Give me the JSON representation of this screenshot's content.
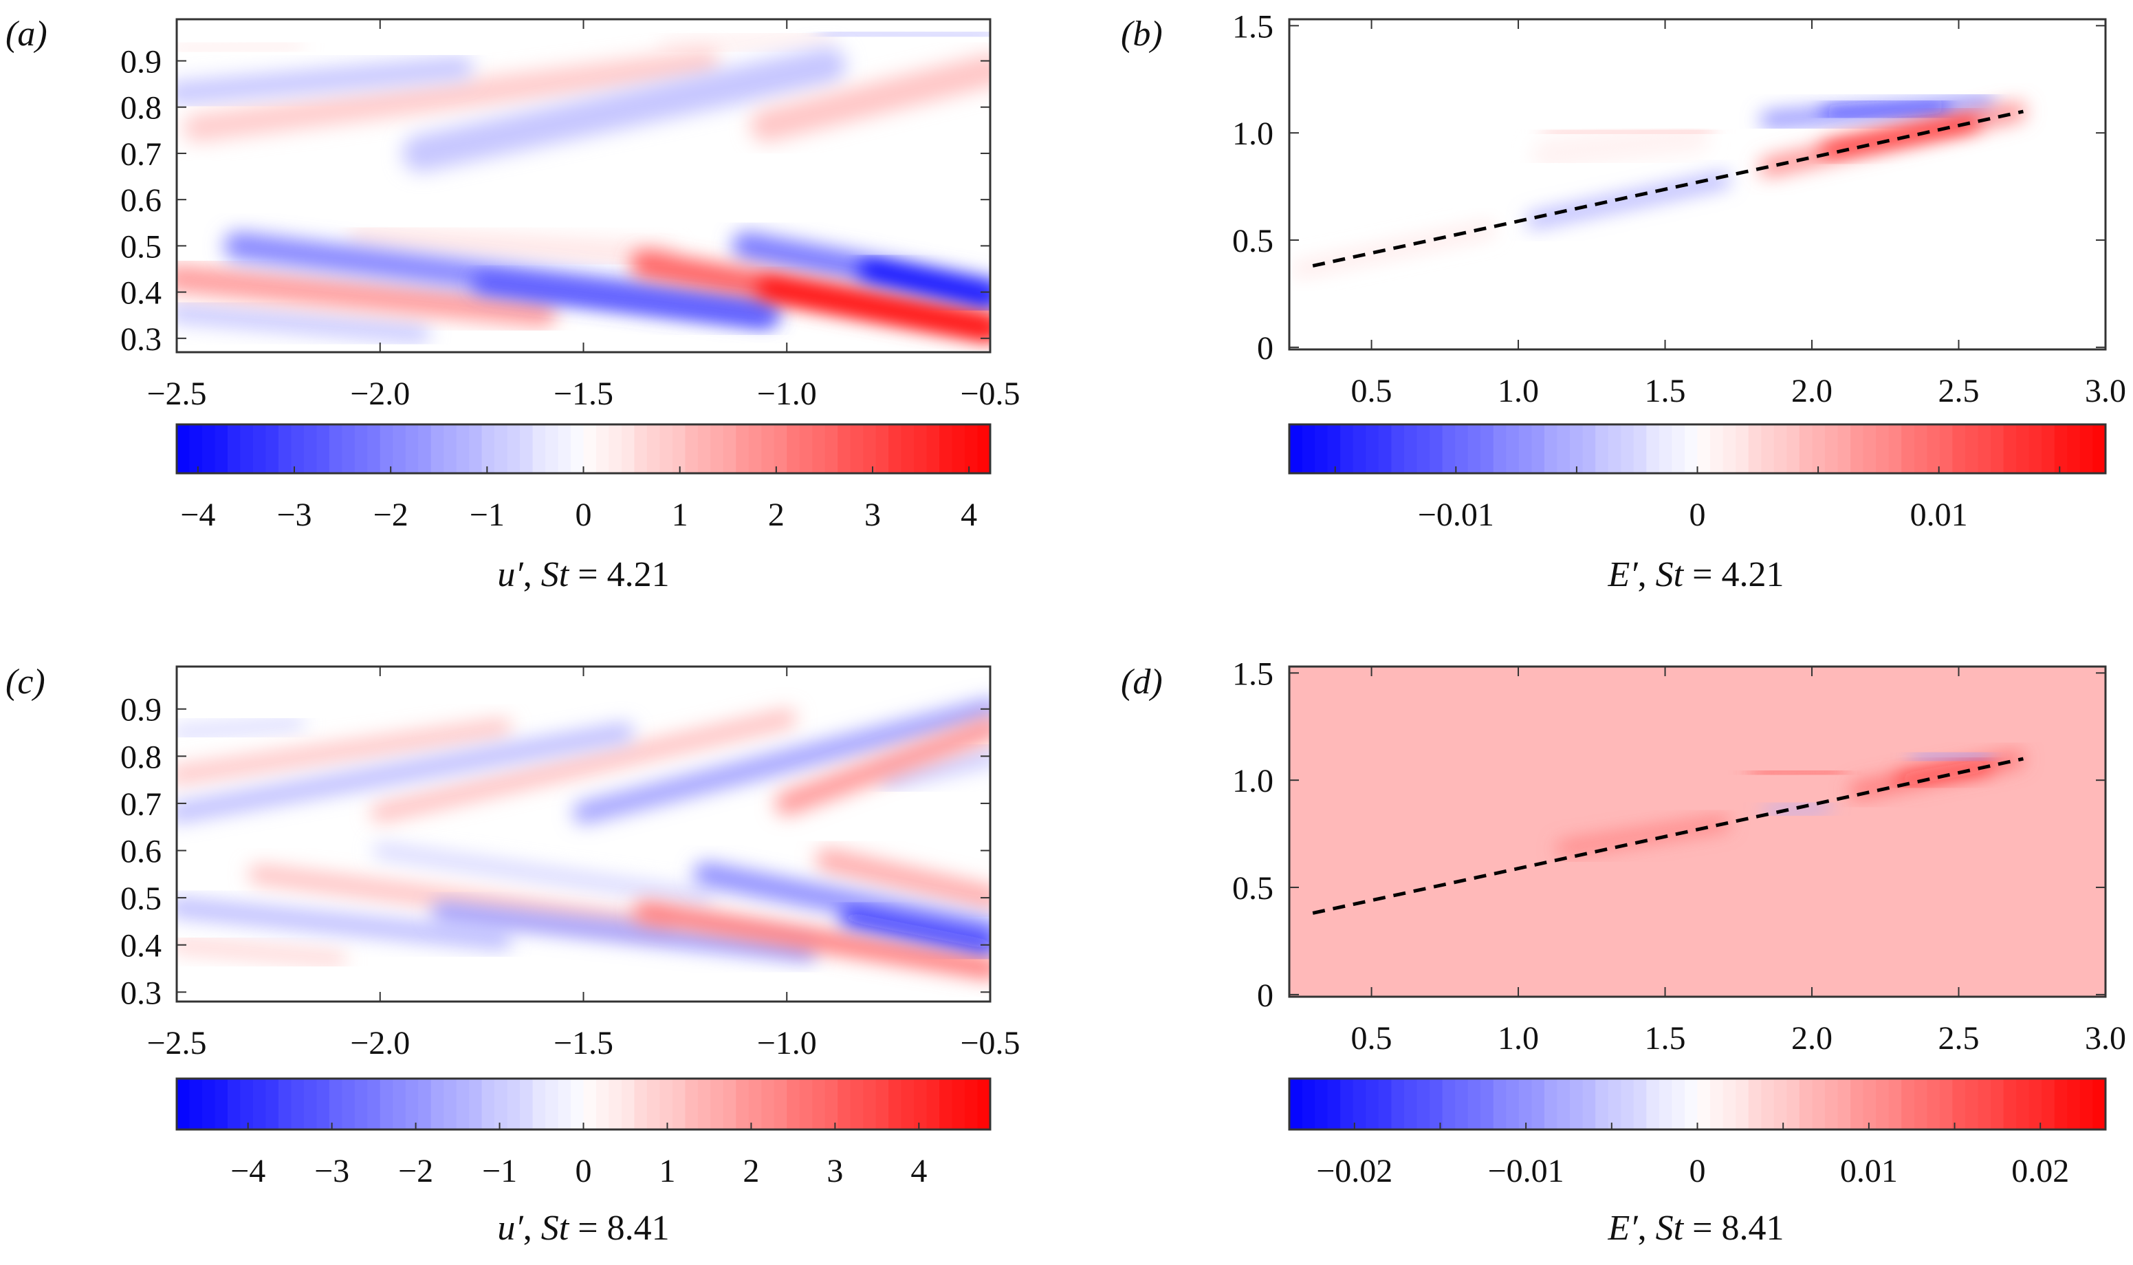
{
  "chart_data": [
    {
      "id": "a",
      "type": "heatmap",
      "panel_label": "(a)",
      "xlim": [
        -2.5,
        -0.5
      ],
      "ylim": [
        0.27,
        0.99
      ],
      "xticks": [
        -2.5,
        -2.0,
        -1.5,
        -1.0,
        -0.5
      ],
      "xtick_labels": [
        "−2.5",
        "−2.0",
        "−1.5",
        "−1.0",
        "−0.5"
      ],
      "yticks": [
        0.3,
        0.4,
        0.5,
        0.6,
        0.7,
        0.8,
        0.9
      ],
      "ytick_labels": [
        "0.3",
        "0.4",
        "0.5",
        "0.6",
        "0.7",
        "0.8",
        "0.9"
      ],
      "colorbar": {
        "range": [
          -4.22,
          4.22
        ],
        "ticks": [
          -4,
          -3,
          -2,
          -1,
          0,
          1,
          2,
          3,
          4
        ],
        "tick_labels": [
          "−4",
          "−3",
          "−2",
          "−1",
          "0",
          "1",
          "2",
          "3",
          "4"
        ],
        "colormap": [
          "#0000ff",
          "#ffffff",
          "#ff0000"
        ]
      },
      "label": {
        "var": "u′",
        "param": "St",
        "value": "4.21"
      },
      "background_value": 0,
      "features": [
        {
          "from": [
            -2.5,
            0.355
          ],
          "to": [
            -1.9,
            0.31
          ],
          "width": 0.04,
          "value": -0.9
        },
        {
          "from": [
            -2.05,
            0.52
          ],
          "to": [
            -1.3,
            0.48
          ],
          "width": 0.05,
          "value": 0.4
        },
        {
          "from": [
            -2.5,
            0.43
          ],
          "to": [
            -1.6,
            0.355
          ],
          "width": 0.06,
          "value": 1.6
        },
        {
          "from": [
            -2.35,
            0.5
          ],
          "to": [
            -1.05,
            0.36
          ],
          "width": 0.06,
          "value": -2.0
        },
        {
          "from": [
            -1.75,
            0.42
          ],
          "to": [
            -1.05,
            0.345
          ],
          "width": 0.04,
          "value": -3.0
        },
        {
          "from": [
            -1.35,
            0.46
          ],
          "to": [
            -0.5,
            0.325
          ],
          "width": 0.06,
          "value": 2.6
        },
        {
          "from": [
            -1.05,
            0.41
          ],
          "to": [
            -0.5,
            0.32
          ],
          "width": 0.04,
          "value": 4.1
        },
        {
          "from": [
            -1.1,
            0.5
          ],
          "to": [
            -0.5,
            0.4
          ],
          "width": 0.06,
          "value": -2.2
        },
        {
          "from": [
            -0.8,
            0.45
          ],
          "to": [
            -0.5,
            0.39
          ],
          "width": 0.04,
          "value": -4.2
        },
        {
          "from": [
            -2.5,
            0.925
          ],
          "to": [
            -2.2,
            0.935
          ],
          "width": 0.02,
          "value": 0.4
        },
        {
          "from": [
            -2.5,
            0.83
          ],
          "to": [
            -1.8,
            0.885
          ],
          "width": 0.05,
          "value": -1.0
        },
        {
          "from": [
            -2.45,
            0.755
          ],
          "to": [
            -1.2,
            0.895
          ],
          "width": 0.06,
          "value": 0.8
        },
        {
          "from": [
            -1.9,
            0.7
          ],
          "to": [
            -0.9,
            0.89
          ],
          "width": 0.08,
          "value": -0.9
        },
        {
          "from": [
            -1.3,
            0.93
          ],
          "to": [
            -0.9,
            0.95
          ],
          "width": 0.03,
          "value": 0.3
        },
        {
          "from": [
            -1.05,
            0.76
          ],
          "to": [
            -0.5,
            0.88
          ],
          "width": 0.07,
          "value": 1.0
        },
        {
          "from": [
            -0.9,
            0.96
          ],
          "to": [
            -0.5,
            0.955
          ],
          "width": 0.04,
          "value": -0.7
        }
      ]
    },
    {
      "id": "b",
      "type": "heatmap",
      "panel_label": "(b)",
      "xlim": [
        0.22,
        3.0
      ],
      "ylim": [
        -0.01,
        1.53
      ],
      "xticks": [
        0.5,
        1.0,
        1.5,
        2.0,
        2.5,
        3.0
      ],
      "xtick_labels": [
        "0.5",
        "1.0",
        "1.5",
        "2.0",
        "2.5",
        "3.0"
      ],
      "yticks": [
        0,
        0.5,
        1.0,
        1.5
      ],
      "ytick_labels": [
        "0",
        "0.5",
        "1.0",
        "1.5"
      ],
      "colorbar": {
        "range": [
          -0.0169,
          0.0169
        ],
        "ticks": [
          -0.01,
          0,
          0.01
        ],
        "tick_labels": [
          "−0.01",
          "0",
          "0.01"
        ],
        "minor_ticks": [
          -0.015,
          -0.005,
          0.005,
          0.015
        ],
        "colormap": [
          "#0000ff",
          "#ffffff",
          "#ff0000"
        ]
      },
      "label": {
        "var": "E′",
        "param": "St",
        "value": "4.21"
      },
      "background_value": 0,
      "dashed_line": {
        "from": [
          0.3,
          0.38
        ],
        "to": [
          2.72,
          1.1
        ]
      },
      "features": [
        {
          "from": [
            2.0,
            0.5
          ],
          "to": [
            3.0,
            0.5
          ],
          "width": 1.2,
          "value": -0.0008
        },
        {
          "from": [
            2.9,
            1.13
          ],
          "to": [
            2.92,
            1.13
          ],
          "width": 0.25,
          "value": -0.002
        },
        {
          "from": [
            0.25,
            0.36
          ],
          "to": [
            0.9,
            0.55
          ],
          "width": 0.06,
          "value": 0.0018
        },
        {
          "from": [
            1.1,
            0.9
          ],
          "to": [
            1.6,
            0.98
          ],
          "width": 0.14,
          "value": 0.0008
        },
        {
          "from": [
            1.1,
            1.0
          ],
          "to": [
            1.65,
            1.01
          ],
          "width": 0.05,
          "value": 0.0035
        },
        {
          "from": [
            0.6,
            0.93
          ],
          "to": [
            0.75,
            0.93
          ],
          "width": 0.02,
          "value": -0.0012
        },
        {
          "from": [
            1.05,
            0.59
          ],
          "to": [
            1.7,
            0.78
          ],
          "width": 0.06,
          "value": -0.006
        },
        {
          "from": [
            1.85,
            1.06
          ],
          "to": [
            2.6,
            1.14
          ],
          "width": 0.07,
          "value": -0.008
        },
        {
          "from": [
            2.05,
            1.09
          ],
          "to": [
            2.45,
            1.13
          ],
          "width": 0.04,
          "value": -0.015
        },
        {
          "from": [
            1.85,
            0.84
          ],
          "to": [
            2.7,
            1.1
          ],
          "width": 0.08,
          "value": 0.008
        },
        {
          "from": [
            2.05,
            0.92
          ],
          "to": [
            2.55,
            1.05
          ],
          "width": 0.05,
          "value": 0.0165
        }
      ]
    },
    {
      "id": "c",
      "type": "heatmap",
      "panel_label": "(c)",
      "xlim": [
        -2.5,
        -0.5
      ],
      "ylim": [
        0.28,
        0.99
      ],
      "xticks": [
        -2.5,
        -2.0,
        -1.5,
        -1.0,
        -0.5
      ],
      "xtick_labels": [
        "−2.5",
        "−2.0",
        "−1.5",
        "−1.0",
        "−0.5"
      ],
      "yticks": [
        0.3,
        0.4,
        0.5,
        0.6,
        0.7,
        0.8,
        0.9
      ],
      "ytick_labels": [
        "0.3",
        "0.4",
        "0.5",
        "0.6",
        "0.7",
        "0.8",
        "0.9"
      ],
      "colorbar": {
        "range": [
          -4.85,
          4.85
        ],
        "ticks": [
          -4,
          -3,
          -2,
          -1,
          0,
          1,
          2,
          3,
          4
        ],
        "tick_labels": [
          "−4",
          "−3",
          "−2",
          "−1",
          "0",
          "1",
          "2",
          "3",
          "4"
        ],
        "colormap": [
          "#0000ff",
          "#ffffff",
          "#ff0000"
        ]
      },
      "label": {
        "var": "u′",
        "param": "St",
        "value": "8.41"
      },
      "background_value": 0,
      "features": [
        {
          "from": [
            -2.5,
            0.4
          ],
          "to": [
            -2.1,
            0.37
          ],
          "width": 0.03,
          "value": 0.8
        },
        {
          "from": [
            -2.5,
            0.48
          ],
          "to": [
            -1.7,
            0.41
          ],
          "width": 0.04,
          "value": -1.3
        },
        {
          "from": [
            -2.3,
            0.55
          ],
          "to": [
            -1.3,
            0.44
          ],
          "width": 0.04,
          "value": 1.2
        },
        {
          "from": [
            -2.0,
            0.6
          ],
          "to": [
            -1.2,
            0.5
          ],
          "width": 0.03,
          "value": -0.9
        },
        {
          "from": [
            -1.85,
            0.47
          ],
          "to": [
            -0.95,
            0.385
          ],
          "width": 0.04,
          "value": -2.0
        },
        {
          "from": [
            -1.35,
            0.47
          ],
          "to": [
            -0.5,
            0.35
          ],
          "width": 0.045,
          "value": 2.6
        },
        {
          "from": [
            -1.2,
            0.55
          ],
          "to": [
            -0.5,
            0.43
          ],
          "width": 0.05,
          "value": -2.2
        },
        {
          "from": [
            -0.85,
            0.46
          ],
          "to": [
            -0.5,
            0.4
          ],
          "width": 0.03,
          "value": -4.6
        },
        {
          "from": [
            -0.9,
            0.58
          ],
          "to": [
            -0.5,
            0.5
          ],
          "width": 0.05,
          "value": 1.6
        },
        {
          "from": [
            -2.5,
            0.85
          ],
          "to": [
            -2.2,
            0.87
          ],
          "width": 0.025,
          "value": -0.8
        },
        {
          "from": [
            -2.5,
            0.76
          ],
          "to": [
            -1.7,
            0.86
          ],
          "width": 0.04,
          "value": 1.1
        },
        {
          "from": [
            -2.5,
            0.68
          ],
          "to": [
            -1.4,
            0.85
          ],
          "width": 0.04,
          "value": -1.3
        },
        {
          "from": [
            -2.0,
            0.68
          ],
          "to": [
            -1.0,
            0.88
          ],
          "width": 0.04,
          "value": 1.2
        },
        {
          "from": [
            -1.5,
            0.68
          ],
          "to": [
            -0.5,
            0.9
          ],
          "width": 0.045,
          "value": -1.8
        },
        {
          "from": [
            -1.0,
            0.7
          ],
          "to": [
            -0.5,
            0.86
          ],
          "width": 0.05,
          "value": 2.0
        },
        {
          "from": [
            -0.75,
            0.75
          ],
          "to": [
            -0.5,
            0.8
          ],
          "width": 0.04,
          "value": -1.0
        }
      ]
    },
    {
      "id": "d",
      "type": "heatmap",
      "panel_label": "(d)",
      "xlim": [
        0.22,
        3.0
      ],
      "ylim": [
        -0.01,
        1.53
      ],
      "xticks": [
        0.5,
        1.0,
        1.5,
        2.0,
        2.5,
        3.0
      ],
      "xtick_labels": [
        "0.5",
        "1.0",
        "1.5",
        "2.0",
        "2.5",
        "3.0"
      ],
      "yticks": [
        0,
        0.5,
        1.0,
        1.5
      ],
      "ytick_labels": [
        "0",
        "0.5",
        "1.0",
        "1.5"
      ],
      "colorbar": {
        "range": [
          -0.0238,
          0.0238
        ],
        "ticks": [
          -0.02,
          -0.01,
          0,
          0.01,
          0.02
        ],
        "tick_labels": [
          "−0.02",
          "−0.01",
          "0",
          "0.01",
          "0.02"
        ],
        "minor_ticks": [
          -0.015,
          -0.005,
          0.005,
          0.015
        ],
        "colormap": [
          "#0000ff",
          "#ffffff",
          "#ff0000"
        ]
      },
      "label": {
        "var": "E′",
        "param": "St",
        "value": "8.41"
      },
      "background_value": 0.0065,
      "dashed_line": {
        "from": [
          0.3,
          0.38
        ],
        "to": [
          2.72,
          1.1
        ]
      },
      "features": [
        {
          "from": [
            0.9,
            0.96
          ],
          "to": [
            1.2,
            0.96
          ],
          "width": 0.04,
          "value": 0.012
        },
        {
          "from": [
            1.45,
            0.98
          ],
          "to": [
            1.75,
            0.98
          ],
          "width": 0.04,
          "value": 0.0
        },
        {
          "from": [
            1.8,
            1.03
          ],
          "to": [
            2.1,
            1.04
          ],
          "width": 0.04,
          "value": 0.017
        },
        {
          "from": [
            2.35,
            1.1
          ],
          "to": [
            2.6,
            1.12
          ],
          "width": 0.04,
          "value": -0.01
        },
        {
          "from": [
            1.85,
            0.85
          ],
          "to": [
            2.05,
            0.88
          ],
          "width": 0.04,
          "value": -0.008
        },
        {
          "from": [
            1.15,
            0.68
          ],
          "to": [
            1.7,
            0.8
          ],
          "width": 0.05,
          "value": 0.013
        },
        {
          "from": [
            2.15,
            0.95
          ],
          "to": [
            2.7,
            1.1
          ],
          "width": 0.06,
          "value": 0.014
        },
        {
          "from": [
            2.3,
            1.0
          ],
          "to": [
            2.6,
            1.07
          ],
          "width": 0.035,
          "value": 0.022
        },
        {
          "from": [
            2.85,
            1.14
          ],
          "to": [
            2.87,
            1.14
          ],
          "width": 0.15,
          "value": 0.0
        }
      ]
    }
  ]
}
